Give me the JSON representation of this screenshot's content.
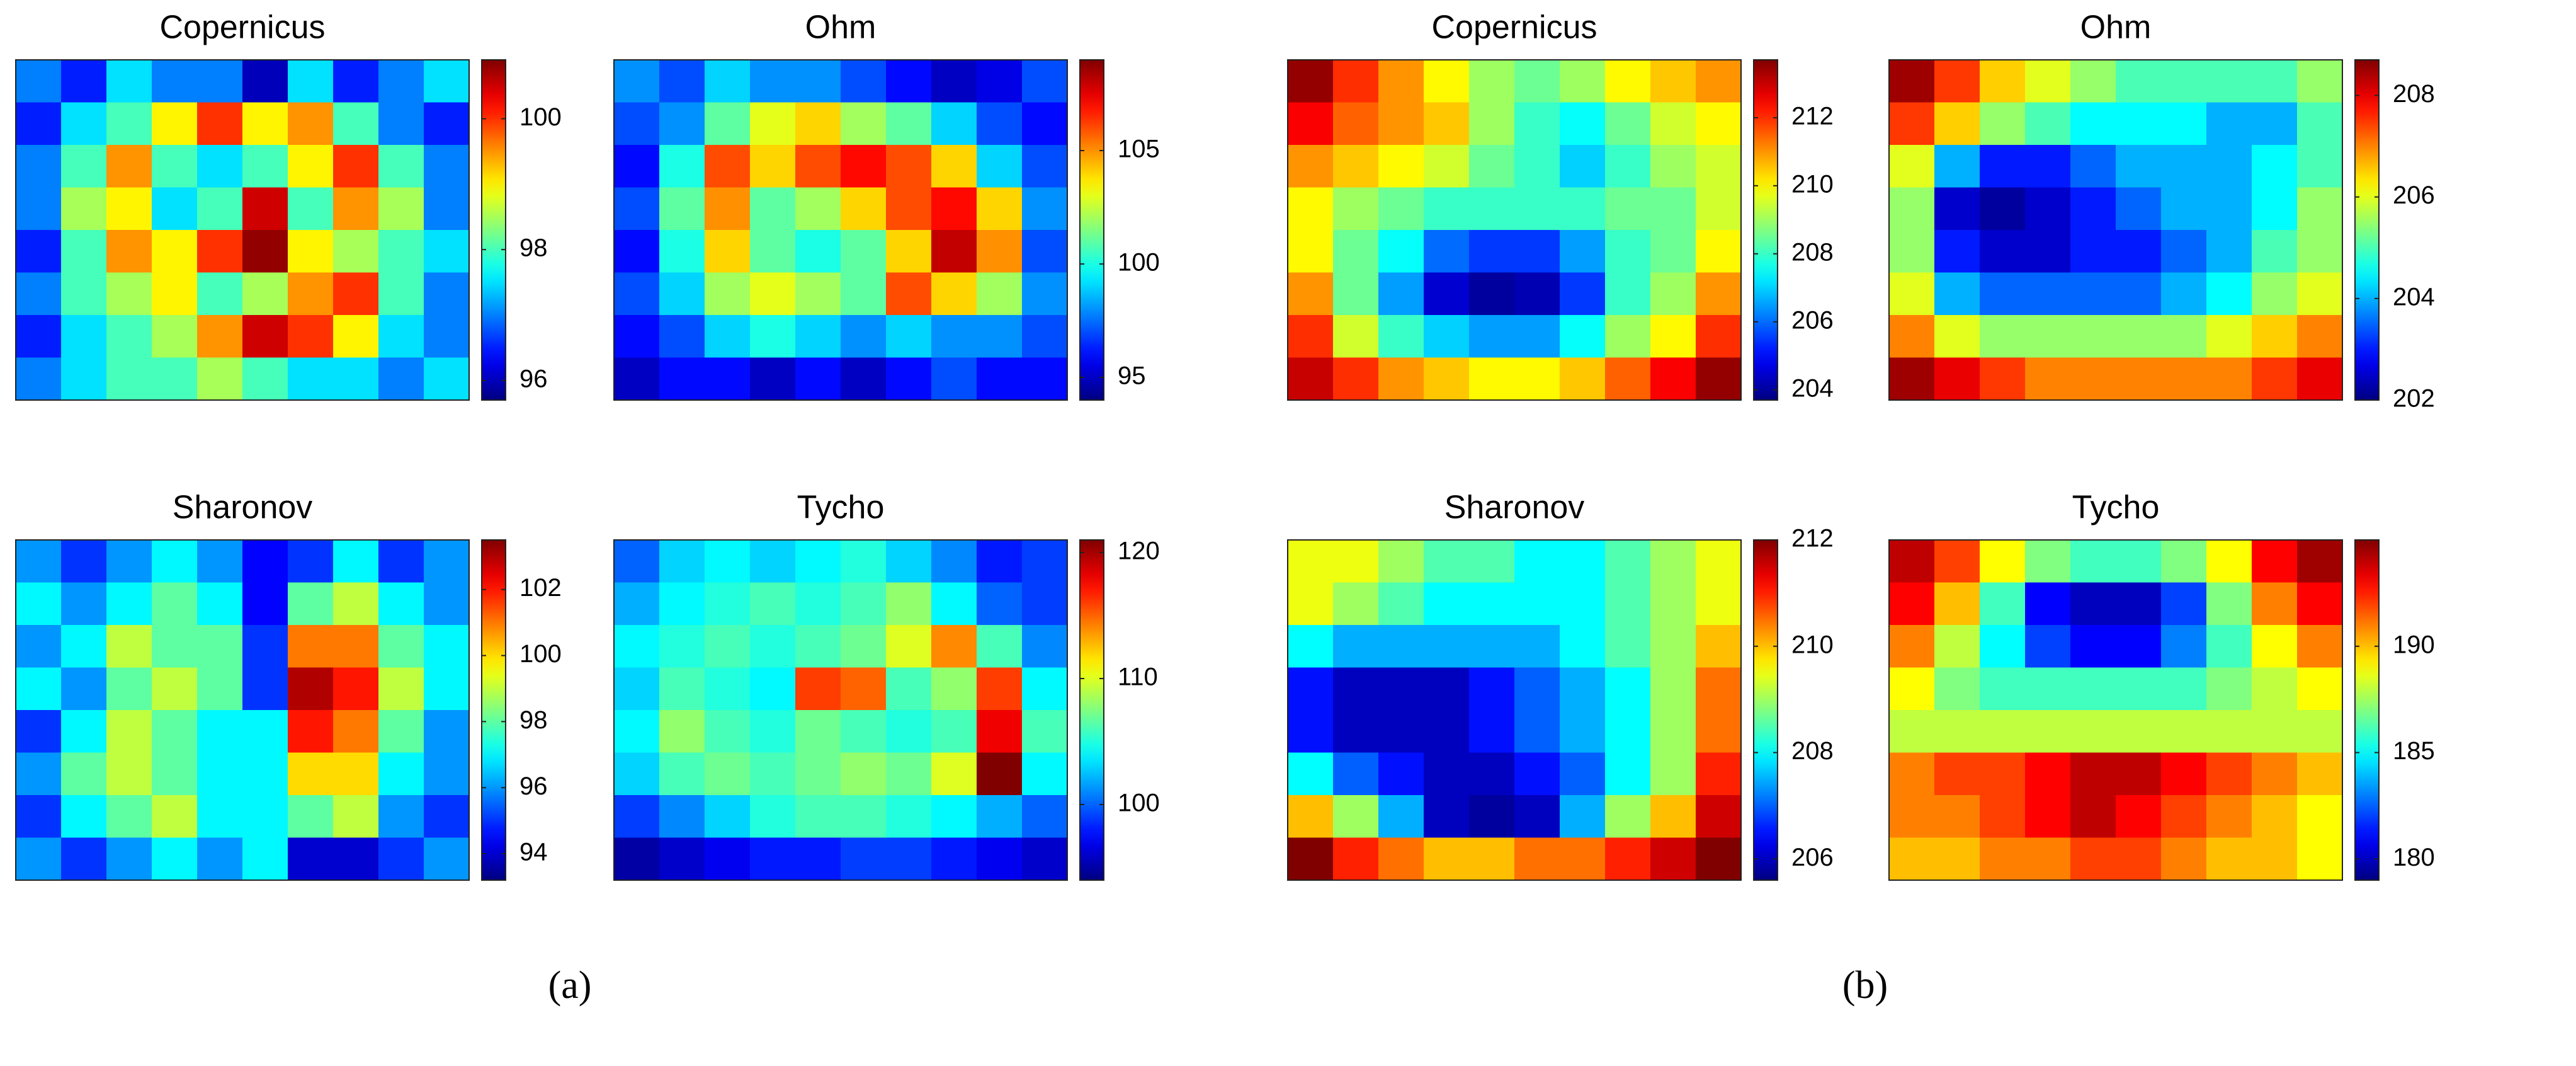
{
  "chart_data": [
    {
      "type": "heatmap",
      "title": "Copernicus",
      "colormap": "jet",
      "zlim": [
        95.7,
        100.9
      ],
      "zticks": [
        96,
        98,
        100
      ],
      "values": [
        [
          97,
          96.5,
          97.5,
          97,
          97,
          96,
          97.5,
          96.5,
          97,
          97.5
        ],
        [
          96.5,
          97.5,
          98,
          99,
          100,
          99,
          99.5,
          98,
          97,
          96.5
        ],
        [
          97,
          98,
          99.5,
          98,
          97.5,
          98,
          99,
          100,
          98,
          97
        ],
        [
          97,
          98.5,
          99,
          97.5,
          98,
          100.5,
          98,
          99.5,
          98.5,
          97
        ],
        [
          96.5,
          98,
          99.5,
          99,
          100,
          100.8,
          99,
          98.5,
          98,
          97.5
        ],
        [
          97,
          98,
          98.5,
          99,
          98,
          98.5,
          99.5,
          100,
          98,
          97
        ],
        [
          96.5,
          97.5,
          98,
          98.5,
          99.5,
          100.5,
          100,
          99,
          97.5,
          97
        ],
        [
          97,
          97.5,
          98,
          98,
          98.5,
          98,
          97.5,
          97.5,
          97,
          97.5
        ]
      ]
    },
    {
      "type": "heatmap",
      "title": "Ohm",
      "colormap": "jet",
      "zlim": [
        94,
        109
      ],
      "zticks": [
        95,
        100,
        105
      ],
      "values": [
        [
          98,
          97,
          99,
          98,
          98,
          97,
          96,
          95,
          95.5,
          97
        ],
        [
          97,
          98,
          101,
          103,
          104,
          102,
          101,
          99,
          97,
          96
        ],
        [
          96,
          100,
          106,
          104,
          106,
          107,
          106,
          104,
          99,
          97
        ],
        [
          97,
          101,
          105,
          101,
          102,
          104,
          106,
          107,
          104,
          98
        ],
        [
          96,
          100,
          104,
          101,
          100,
          101,
          104,
          108,
          105,
          97
        ],
        [
          97,
          99,
          102,
          103,
          102,
          101,
          106,
          104,
          102,
          98
        ],
        [
          96,
          97,
          99,
          100,
          99,
          98,
          99,
          98,
          98,
          97
        ],
        [
          95,
          96,
          96,
          95,
          96,
          95,
          96,
          97,
          96,
          96
        ]
      ]
    },
    {
      "type": "heatmap",
      "title": "Copernicus",
      "colormap": "jet",
      "zlim": [
        203.7,
        213.7
      ],
      "zticks": [
        204,
        206,
        208,
        210,
        212
      ],
      "values": [
        [
          213.5,
          212,
          211,
          210,
          209,
          208.5,
          209,
          210,
          210.5,
          211
        ],
        [
          212.5,
          211.5,
          211,
          210.5,
          209,
          208,
          207.5,
          208.5,
          209.5,
          210
        ],
        [
          211,
          210.5,
          210,
          209.5,
          208.5,
          208,
          207,
          208,
          209,
          209.5
        ],
        [
          210,
          209,
          208.5,
          208,
          208,
          208,
          208,
          208.5,
          208.5,
          209.5
        ],
        [
          210,
          208.5,
          207.5,
          206,
          205.5,
          205.5,
          206.5,
          208,
          208.5,
          210
        ],
        [
          211,
          208.5,
          206.5,
          204.5,
          204,
          204.2,
          205.5,
          208,
          209,
          211
        ],
        [
          212,
          209.5,
          208,
          207,
          206.5,
          206.5,
          207.5,
          209,
          210,
          212
        ],
        [
          213,
          212,
          211,
          210.5,
          210,
          210,
          210.5,
          211.5,
          212.5,
          213.5
        ]
      ]
    },
    {
      "type": "heatmap",
      "title": "Ohm",
      "colormap": "jet",
      "zlim": [
        202,
        208.7
      ],
      "zticks": [
        202,
        204,
        206,
        208
      ],
      "values": [
        [
          208.5,
          207.5,
          206.5,
          206,
          205.5,
          205,
          205,
          205,
          205,
          205.5
        ],
        [
          207.5,
          206.5,
          205.5,
          205,
          204.5,
          204.5,
          204.5,
          204,
          204,
          205
        ],
        [
          206,
          204,
          203,
          203,
          203.5,
          204,
          204,
          204,
          204.5,
          205
        ],
        [
          205.5,
          202.5,
          202.2,
          202.5,
          203,
          203.5,
          204,
          204,
          204.5,
          205.5
        ],
        [
          205.5,
          203,
          202.5,
          202.5,
          203,
          203,
          203.5,
          204,
          205,
          205.5
        ],
        [
          206,
          204,
          203.5,
          203.5,
          203.5,
          203.5,
          204,
          204.5,
          205.5,
          206
        ],
        [
          207,
          206,
          205.5,
          205.5,
          205.5,
          205.5,
          205.5,
          206,
          206.5,
          207
        ],
        [
          208.5,
          208,
          207.5,
          207,
          207,
          207,
          207,
          207,
          207.5,
          208
        ]
      ]
    },
    {
      "type": "heatmap",
      "title": "Sharonov",
      "colormap": "jet",
      "zlim": [
        93.2,
        103.5
      ],
      "zticks": [
        94,
        96,
        98,
        100,
        102
      ],
      "values": [
        [
          96,
          95,
          96,
          97,
          96,
          94.5,
          95,
          97,
          95,
          96
        ],
        [
          97,
          96,
          97,
          98,
          97,
          94.5,
          98,
          99,
          97,
          96
        ],
        [
          96,
          97,
          99,
          98,
          98,
          95,
          101,
          101,
          98,
          97
        ],
        [
          97,
          96,
          98,
          99,
          98,
          95,
          103,
          102,
          99,
          97
        ],
        [
          95,
          97,
          99,
          98,
          97,
          97,
          102,
          101,
          98,
          96
        ],
        [
          96,
          98,
          99,
          98,
          97,
          97,
          100,
          100,
          97,
          96
        ],
        [
          95,
          97,
          98,
          99,
          97,
          97,
          98,
          99,
          96,
          95
        ],
        [
          96,
          95,
          96,
          97,
          96,
          97,
          94,
          94,
          95,
          96
        ]
      ]
    },
    {
      "type": "heatmap",
      "title": "Tycho",
      "colormap": "jet",
      "zlim": [
        94,
        121
      ],
      "zticks": [
        100,
        110,
        120
      ],
      "values": [
        [
          100,
          103,
          104,
          103,
          104,
          105,
          103,
          101,
          98,
          99
        ],
        [
          102,
          104,
          105,
          106,
          105,
          106,
          108,
          104,
          100,
          99
        ],
        [
          104,
          105,
          106,
          105,
          106,
          107,
          110,
          114,
          106,
          101
        ],
        [
          103,
          106,
          105,
          104,
          116,
          115,
          106,
          108,
          116,
          104
        ],
        [
          104,
          108,
          106,
          105,
          107,
          106,
          105,
          106,
          118,
          106
        ],
        [
          103,
          106,
          107,
          106,
          107,
          108,
          107,
          110,
          121,
          104
        ],
        [
          99,
          101,
          103,
          105,
          106,
          106,
          105,
          104,
          102,
          100
        ],
        [
          95,
          96,
          97,
          98,
          98,
          99,
          99,
          98,
          97,
          96
        ]
      ]
    },
    {
      "type": "heatmap",
      "title": "Sharonov",
      "colormap": "jet",
      "zlim": [
        205.6,
        212
      ],
      "zticks": [
        206,
        208,
        210,
        212
      ],
      "values": [
        [
          209.5,
          209.5,
          209,
          208.5,
          208.5,
          208,
          208,
          208.5,
          209,
          209.5
        ],
        [
          209.5,
          209,
          208.5,
          208,
          208,
          208,
          208,
          208.5,
          209,
          209.5
        ],
        [
          208,
          207.5,
          207.5,
          207.5,
          207.5,
          207.5,
          208,
          208.5,
          209,
          210
        ],
        [
          206.5,
          206,
          206,
          206,
          206.5,
          207,
          207.5,
          208,
          209,
          210.5
        ],
        [
          206.5,
          206,
          206,
          206,
          206.5,
          207,
          207.5,
          208,
          209,
          210.5
        ],
        [
          208,
          207,
          206.5,
          206,
          206,
          206.5,
          207,
          208,
          209,
          211
        ],
        [
          210,
          209,
          207.5,
          206,
          205.8,
          206,
          207.5,
          209,
          210,
          211.5
        ],
        [
          212,
          211,
          210.5,
          210,
          210,
          210.5,
          210.5,
          211,
          211.5,
          212
        ]
      ]
    },
    {
      "type": "heatmap",
      "title": "Tycho",
      "colormap": "jet",
      "zlim": [
        179,
        195
      ],
      "zticks": [
        180,
        185,
        190
      ],
      "values": [
        [
          194,
          192,
          189,
          187,
          186,
          186,
          187,
          189,
          193,
          194.5
        ],
        [
          193,
          190,
          186,
          181,
          180,
          180,
          182,
          187,
          191,
          193
        ],
        [
          191,
          188,
          185,
          182,
          181,
          181,
          183,
          186,
          189,
          191
        ],
        [
          189,
          187,
          186,
          186,
          186,
          186,
          186,
          187,
          188,
          189
        ],
        [
          188,
          188,
          188,
          188,
          188,
          188,
          188,
          188,
          188,
          188
        ],
        [
          191,
          192,
          192,
          193,
          194,
          194,
          193,
          192,
          191,
          190
        ],
        [
          191,
          191,
          192,
          193,
          194,
          193,
          192,
          191,
          190,
          189
        ],
        [
          190,
          190,
          191,
          191,
          192,
          192,
          191,
          190,
          190,
          189
        ]
      ]
    }
  ],
  "panel_labels": [
    "(a)",
    "(b)"
  ]
}
